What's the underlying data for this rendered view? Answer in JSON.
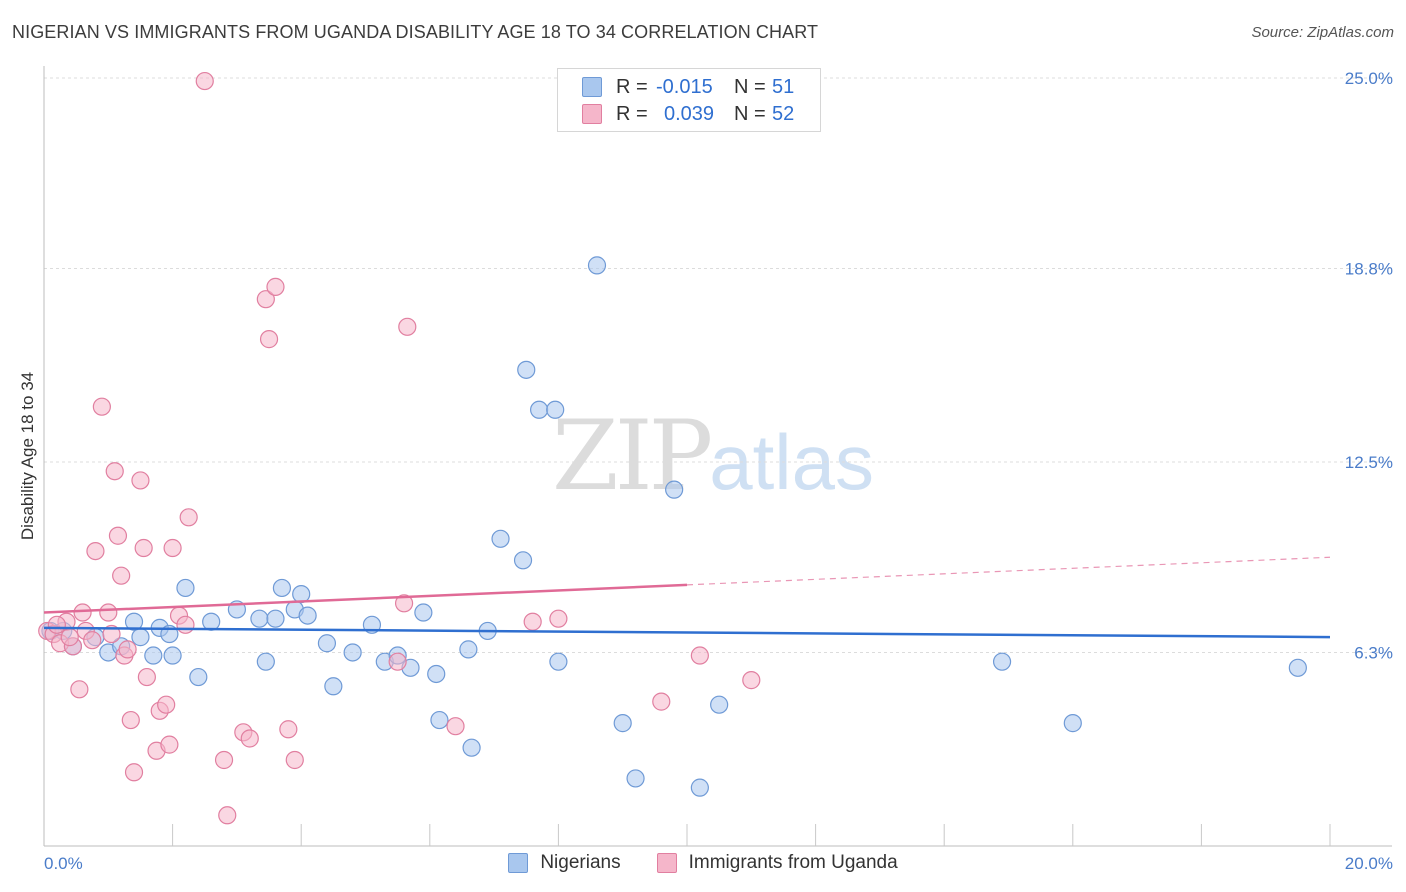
{
  "title": "NIGERIAN VS IMMIGRANTS FROM UGANDA DISABILITY AGE 18 TO 34 CORRELATION CHART",
  "source": "Source: ZipAtlas.com",
  "watermark": {
    "zip": "ZIP",
    "atlas": "atlas"
  },
  "legend": {
    "r_label": "R =",
    "n_label": "N =",
    "rows": [
      {
        "name": "Nigerians",
        "r": "-0.015",
        "n": "51",
        "color": "#a9c7ee",
        "stroke": "#6f9ad6"
      },
      {
        "name": "Immigrants from Uganda",
        "r": "0.039",
        "n": "52",
        "color": "#f5b6ca",
        "stroke": "#e17fa0"
      }
    ]
  },
  "chart_data": {
    "type": "scatter",
    "title": "NIGERIAN VS IMMIGRANTS FROM UGANDA DISABILITY AGE 18 TO 34 CORRELATION CHART",
    "xlabel": "",
    "ylabel": "Disability Age 18 to 34",
    "xlim": [
      0,
      20
    ],
    "ylim": [
      0,
      25
    ],
    "x_tick_labels": [
      "0.0%",
      "20.0%"
    ],
    "y_ticks": [
      6.3,
      12.5,
      18.8,
      25.0
    ],
    "y_tick_labels": [
      "6.3%",
      "12.5%",
      "18.8%",
      "25.0%"
    ],
    "grid": true,
    "series": [
      {
        "name": "Nigerians",
        "color": "#a9c7ee",
        "trend": {
          "x0": 0,
          "y0": 7.1,
          "x1": 20,
          "y1": 6.8,
          "dashed_from": 20
        },
        "points": [
          [
            0.1,
            7.0
          ],
          [
            0.3,
            7.0
          ],
          [
            0.45,
            6.5
          ],
          [
            0.8,
            6.8
          ],
          [
            1.0,
            6.3
          ],
          [
            1.2,
            6.5
          ],
          [
            1.5,
            6.8
          ],
          [
            1.7,
            6.2
          ],
          [
            1.8,
            7.1
          ],
          [
            1.95,
            6.9
          ],
          [
            2.2,
            8.4
          ],
          [
            2.4,
            5.5
          ],
          [
            2.6,
            7.3
          ],
          [
            3.0,
            7.7
          ],
          [
            3.35,
            7.4
          ],
          [
            3.45,
            6.0
          ],
          [
            3.6,
            7.4
          ],
          [
            3.7,
            8.4
          ],
          [
            3.9,
            7.7
          ],
          [
            4.0,
            8.2
          ],
          [
            4.1,
            7.5
          ],
          [
            4.4,
            6.6
          ],
          [
            4.8,
            6.3
          ],
          [
            4.5,
            5.2
          ],
          [
            5.1,
            7.2
          ],
          [
            5.3,
            6.0
          ],
          [
            5.5,
            6.2
          ],
          [
            5.7,
            5.8
          ],
          [
            5.9,
            7.6
          ],
          [
            6.1,
            5.6
          ],
          [
            6.15,
            4.1
          ],
          [
            6.6,
            6.4
          ],
          [
            6.9,
            7.0
          ],
          [
            7.1,
            10.0
          ],
          [
            7.45,
            9.3
          ],
          [
            6.65,
            3.2
          ],
          [
            7.5,
            15.5
          ],
          [
            7.7,
            14.2
          ],
          [
            7.95,
            14.2
          ],
          [
            8.0,
            6.0
          ],
          [
            8.6,
            18.9
          ],
          [
            9.8,
            11.6
          ],
          [
            9.0,
            4.0
          ],
          [
            9.2,
            2.2
          ],
          [
            10.2,
            1.9
          ],
          [
            10.5,
            4.6
          ],
          [
            14.9,
            6.0
          ],
          [
            16.0,
            4.0
          ],
          [
            19.5,
            5.8
          ],
          [
            1.4,
            7.3
          ],
          [
            2.0,
            6.2
          ]
        ]
      },
      {
        "name": "Immigrants from Uganda",
        "color": "#f5b6ca",
        "trend": {
          "x0": 0,
          "y0": 7.6,
          "x1": 10,
          "y1": 8.5,
          "dashed_from": 10
        },
        "points": [
          [
            0.05,
            7.0
          ],
          [
            0.15,
            6.9
          ],
          [
            0.25,
            6.6
          ],
          [
            0.35,
            7.3
          ],
          [
            0.45,
            6.5
          ],
          [
            0.55,
            5.1
          ],
          [
            0.6,
            7.6
          ],
          [
            0.65,
            7.0
          ],
          [
            0.75,
            6.7
          ],
          [
            0.8,
            9.6
          ],
          [
            0.9,
            14.3
          ],
          [
            1.0,
            7.6
          ],
          [
            1.1,
            12.2
          ],
          [
            1.15,
            10.1
          ],
          [
            1.2,
            8.8
          ],
          [
            1.25,
            6.2
          ],
          [
            1.3,
            6.4
          ],
          [
            1.35,
            4.1
          ],
          [
            1.4,
            2.4
          ],
          [
            1.5,
            11.9
          ],
          [
            1.55,
            9.7
          ],
          [
            1.6,
            5.5
          ],
          [
            1.75,
            3.1
          ],
          [
            1.8,
            4.4
          ],
          [
            1.9,
            4.6
          ],
          [
            1.95,
            3.3
          ],
          [
            2.0,
            9.7
          ],
          [
            2.1,
            7.5
          ],
          [
            2.2,
            7.2
          ],
          [
            2.25,
            10.7
          ],
          [
            2.5,
            24.9
          ],
          [
            2.8,
            2.8
          ],
          [
            2.85,
            1.0
          ],
          [
            3.1,
            3.7
          ],
          [
            3.2,
            3.5
          ],
          [
            3.45,
            17.8
          ],
          [
            3.5,
            16.5
          ],
          [
            3.6,
            18.2
          ],
          [
            3.8,
            3.8
          ],
          [
            3.9,
            2.8
          ],
          [
            5.5,
            6.0
          ],
          [
            5.6,
            7.9
          ],
          [
            5.65,
            16.9
          ],
          [
            6.4,
            3.9
          ],
          [
            7.6,
            7.3
          ],
          [
            8.0,
            7.4
          ],
          [
            9.6,
            4.7
          ],
          [
            10.2,
            6.2
          ],
          [
            11.0,
            5.4
          ],
          [
            0.2,
            7.2
          ],
          [
            0.4,
            6.8
          ],
          [
            1.05,
            6.9
          ]
        ]
      }
    ]
  }
}
